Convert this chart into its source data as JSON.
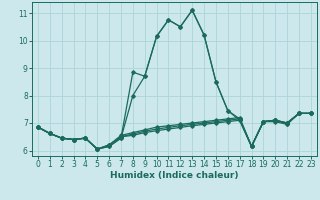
{
  "xlabel": "Humidex (Indice chaleur)",
  "bg_color": "#cce8ec",
  "grid_color": "#aed4d8",
  "line_color": "#1a6b5e",
  "xlim": [
    -0.5,
    23.5
  ],
  "ylim": [
    5.8,
    11.4
  ],
  "xticks": [
    0,
    1,
    2,
    3,
    4,
    5,
    6,
    7,
    8,
    9,
    10,
    11,
    12,
    13,
    14,
    15,
    16,
    17,
    18,
    19,
    20,
    21,
    22,
    23
  ],
  "yticks": [
    6,
    7,
    8,
    9,
    10,
    11
  ],
  "lines": [
    {
      "x": [
        0,
        1,
        2,
        3,
        4,
        5,
        6,
        7,
        8,
        9,
        10,
        11,
        12,
        13,
        14,
        15,
        16,
        17,
        18,
        19,
        20,
        21,
        22,
        23
      ],
      "y": [
        6.85,
        6.62,
        6.45,
        6.4,
        6.45,
        6.05,
        6.15,
        6.45,
        8.85,
        8.7,
        10.15,
        10.75,
        10.5,
        11.1,
        10.2,
        8.5,
        7.45,
        7.15,
        6.15,
        7.05,
        7.1,
        7.0,
        7.35,
        7.35
      ]
    },
    {
      "x": [
        0,
        1,
        2,
        3,
        4,
        5,
        6,
        7,
        8,
        9,
        10,
        11,
        12,
        13,
        14,
        15,
        16,
        17,
        18,
        19,
        20,
        21,
        22,
        23
      ],
      "y": [
        6.85,
        6.62,
        6.45,
        6.4,
        6.45,
        6.05,
        6.15,
        6.45,
        8.0,
        8.7,
        10.15,
        10.75,
        10.5,
        11.1,
        10.2,
        8.5,
        7.45,
        7.1,
        6.15,
        7.05,
        7.1,
        7.0,
        7.35,
        7.35
      ]
    },
    {
      "x": [
        0,
        1,
        2,
        3,
        4,
        5,
        6,
        7,
        8,
        9,
        10,
        11,
        12,
        13,
        14,
        15,
        16,
        17,
        18,
        19,
        20,
        21,
        22,
        23
      ],
      "y": [
        6.85,
        6.62,
        6.45,
        6.4,
        6.45,
        6.05,
        6.2,
        6.55,
        6.65,
        6.75,
        6.85,
        6.9,
        6.95,
        7.0,
        7.05,
        7.1,
        7.15,
        7.2,
        6.15,
        7.05,
        7.1,
        7.0,
        7.35,
        7.35
      ]
    },
    {
      "x": [
        0,
        1,
        2,
        3,
        4,
        5,
        6,
        7,
        8,
        9,
        10,
        11,
        12,
        13,
        14,
        15,
        16,
        17,
        18,
        19,
        20,
        21,
        22,
        23
      ],
      "y": [
        6.85,
        6.62,
        6.45,
        6.4,
        6.45,
        6.05,
        6.2,
        6.5,
        6.6,
        6.7,
        6.78,
        6.84,
        6.9,
        6.95,
        7.0,
        7.05,
        7.1,
        7.15,
        6.15,
        7.05,
        7.1,
        6.98,
        7.35,
        7.35
      ]
    },
    {
      "x": [
        0,
        1,
        2,
        3,
        4,
        5,
        6,
        7,
        8,
        9,
        10,
        11,
        12,
        13,
        14,
        15,
        16,
        17,
        18,
        19,
        20,
        21,
        22,
        23
      ],
      "y": [
        6.85,
        6.62,
        6.45,
        6.4,
        6.45,
        6.05,
        6.2,
        6.5,
        6.55,
        6.65,
        6.72,
        6.78,
        6.84,
        6.9,
        6.95,
        7.0,
        7.05,
        7.1,
        6.15,
        7.05,
        7.05,
        6.95,
        7.35,
        7.35
      ]
    }
  ]
}
